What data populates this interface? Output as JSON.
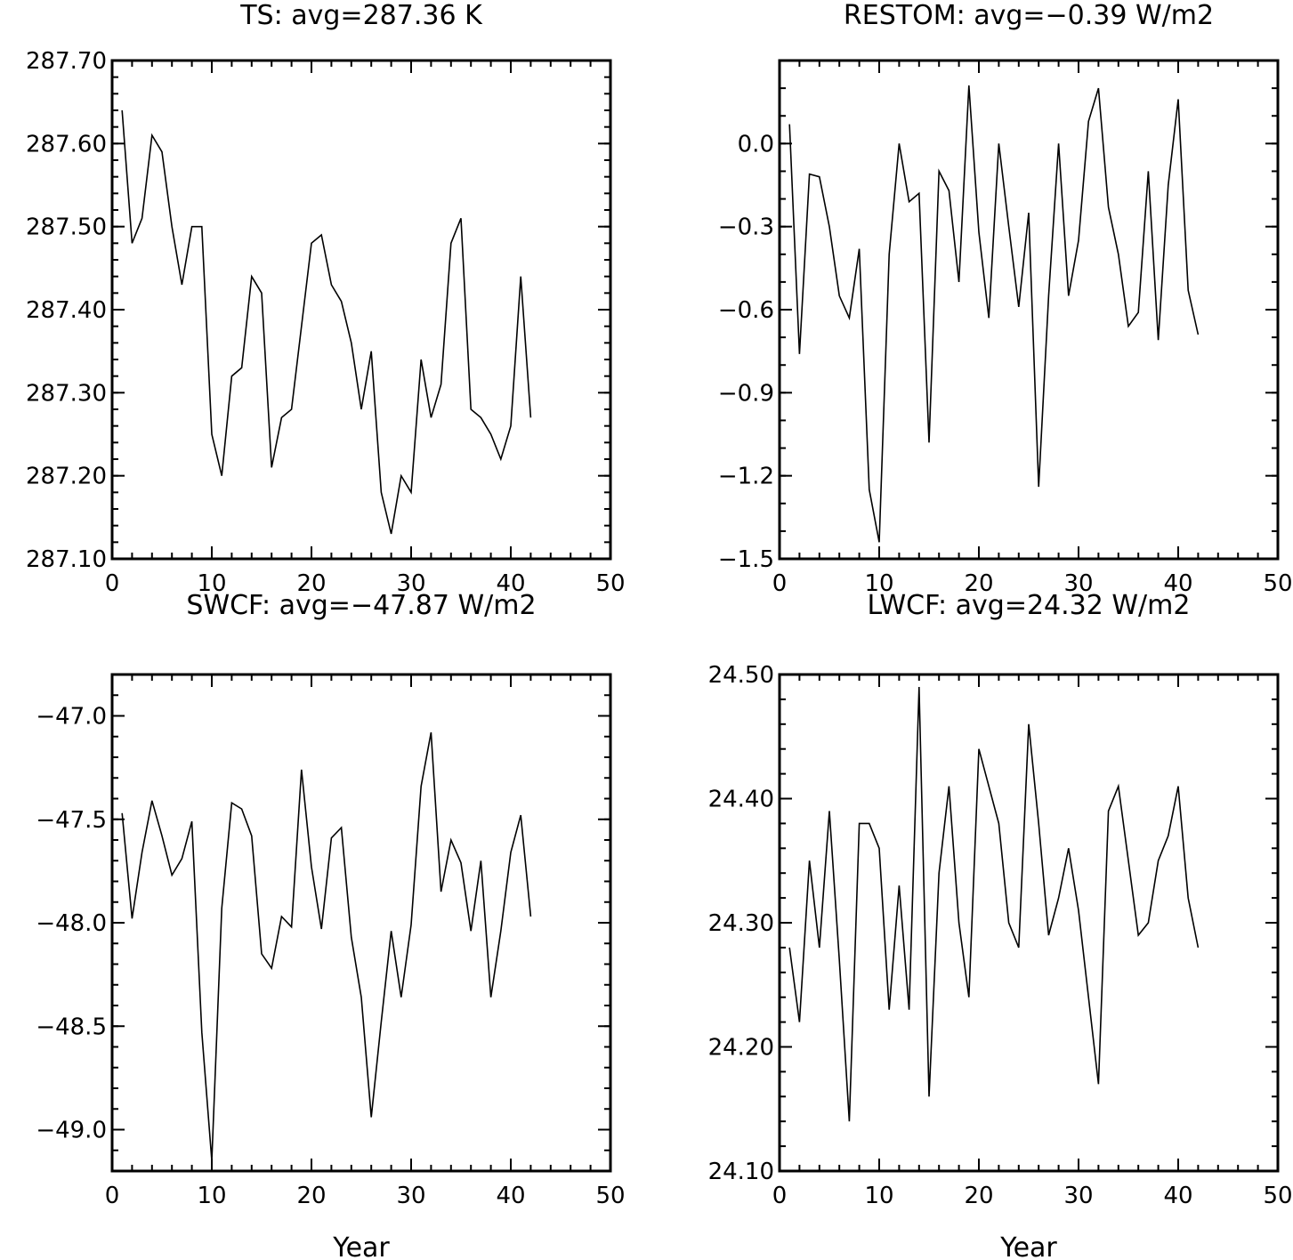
{
  "chart_data": [
    {
      "type": "line",
      "title": "TS: avg=287.36 K",
      "xlabel": "",
      "ylabel": "",
      "xlim": [
        0,
        50
      ],
      "ylim": [
        287.1,
        287.7
      ],
      "xticks": [
        0,
        10,
        20,
        30,
        40,
        50
      ],
      "xtick_labels": [
        "0",
        "10",
        "20",
        "30",
        "40",
        "50"
      ],
      "yticks": [
        287.1,
        287.2,
        287.3,
        287.4,
        287.5,
        287.6,
        287.7
      ],
      "ytick_labels": [
        "287.10",
        "287.20",
        "287.30",
        "287.40",
        "287.50",
        "287.60",
        "287.70"
      ],
      "yminor_step": 0.02,
      "grid": false,
      "x": [
        1,
        2,
        3,
        4,
        5,
        6,
        7,
        8,
        9,
        10,
        11,
        12,
        13,
        14,
        15,
        16,
        17,
        18,
        19,
        20,
        21,
        22,
        23,
        24,
        25,
        26,
        27,
        28,
        29,
        30,
        31,
        32,
        33,
        34,
        35,
        36,
        37,
        38,
        39,
        40,
        41,
        42
      ],
      "values": [
        287.64,
        287.48,
        287.51,
        287.61,
        287.59,
        287.5,
        287.43,
        287.5,
        287.5,
        287.25,
        287.2,
        287.32,
        287.33,
        287.44,
        287.42,
        287.21,
        287.27,
        287.28,
        287.38,
        287.48,
        287.49,
        287.43,
        287.41,
        287.36,
        287.28,
        287.35,
        287.18,
        287.13,
        287.2,
        287.18,
        287.34,
        287.27,
        287.31,
        287.48,
        287.51,
        287.28,
        287.27,
        287.25,
        287.22,
        287.26,
        287.44,
        287.27
      ]
    },
    {
      "type": "line",
      "title": "RESTOM: avg=−0.39 W/m2",
      "xlabel": "",
      "ylabel": "",
      "xlim": [
        0,
        50
      ],
      "ylim": [
        -1.5,
        0.3
      ],
      "xticks": [
        0,
        10,
        20,
        30,
        40,
        50
      ],
      "xtick_labels": [
        "0",
        "10",
        "20",
        "30",
        "40",
        "50"
      ],
      "yticks": [
        -1.5,
        -1.2,
        -0.9,
        -0.6,
        -0.3,
        0.0
      ],
      "ytick_labels": [
        "−1.5",
        "−1.2",
        "−0.9",
        "−0.6",
        "−0.3",
        "0.0"
      ],
      "yminor_step": 0.1,
      "grid": false,
      "x": [
        1,
        2,
        3,
        4,
        5,
        6,
        7,
        8,
        9,
        10,
        11,
        12,
        13,
        14,
        15,
        16,
        17,
        18,
        19,
        20,
        21,
        22,
        23,
        24,
        25,
        26,
        27,
        28,
        29,
        30,
        31,
        32,
        33,
        34,
        35,
        36,
        37,
        38,
        39,
        40,
        41,
        42
      ],
      "values": [
        0.07,
        -0.76,
        -0.11,
        -0.12,
        -0.3,
        -0.55,
        -0.63,
        -0.38,
        -1.25,
        -1.44,
        -0.4,
        0.0,
        -0.21,
        -0.18,
        -1.08,
        -0.1,
        -0.17,
        -0.5,
        0.21,
        -0.32,
        -0.63,
        0.0,
        -0.3,
        -0.59,
        -0.25,
        -1.24,
        -0.55,
        0.0,
        -0.55,
        -0.35,
        0.08,
        0.2,
        -0.23,
        -0.4,
        -0.66,
        -0.61,
        -0.1,
        -0.71,
        -0.15,
        0.16,
        -0.53,
        -0.69
      ]
    },
    {
      "type": "line",
      "title": "SWCF: avg=−47.87 W/m2",
      "xlabel": "Year",
      "ylabel": "",
      "xlim": [
        0,
        50
      ],
      "ylim": [
        -49.2,
        -46.8
      ],
      "xticks": [
        0,
        10,
        20,
        30,
        40,
        50
      ],
      "xtick_labels": [
        "0",
        "10",
        "20",
        "30",
        "40",
        "50"
      ],
      "yticks": [
        -49.0,
        -48.5,
        -48.0,
        -47.5,
        -47.0
      ],
      "ytick_labels": [
        "−49.0",
        "−48.5",
        "−48.0",
        "−47.5",
        "−47.0"
      ],
      "yminor_step": 0.1,
      "grid": false,
      "x": [
        1,
        2,
        3,
        4,
        5,
        6,
        7,
        8,
        9,
        10,
        11,
        12,
        13,
        14,
        15,
        16,
        17,
        18,
        19,
        20,
        21,
        22,
        23,
        24,
        25,
        26,
        27,
        28,
        29,
        30,
        31,
        32,
        33,
        34,
        35,
        36,
        37,
        38,
        39,
        40,
        41,
        42
      ],
      "values": [
        -47.47,
        -47.98,
        -47.66,
        -47.41,
        -47.58,
        -47.77,
        -47.69,
        -47.51,
        -48.53,
        -49.15,
        -47.93,
        -47.42,
        -47.45,
        -47.58,
        -48.15,
        -48.22,
        -47.97,
        -48.02,
        -47.26,
        -47.73,
        -48.03,
        -47.59,
        -47.54,
        -48.07,
        -48.36,
        -48.94,
        -48.48,
        -48.04,
        -48.36,
        -48.01,
        -47.34,
        -47.08,
        -47.85,
        -47.6,
        -47.71,
        -48.04,
        -47.7,
        -48.36,
        -48.04,
        -47.66,
        -47.48,
        -47.97
      ]
    },
    {
      "type": "line",
      "title": "LWCF: avg=24.32 W/m2",
      "xlabel": "Year",
      "ylabel": "",
      "xlim": [
        0,
        50
      ],
      "ylim": [
        24.1,
        24.5
      ],
      "xticks": [
        0,
        10,
        20,
        30,
        40,
        50
      ],
      "xtick_labels": [
        "0",
        "10",
        "20",
        "30",
        "40",
        "50"
      ],
      "yticks": [
        24.1,
        24.2,
        24.3,
        24.4,
        24.5
      ],
      "ytick_labels": [
        "24.10",
        "24.20",
        "24.30",
        "24.40",
        "24.50"
      ],
      "yminor_step": 0.02,
      "grid": false,
      "x": [
        1,
        2,
        3,
        4,
        5,
        6,
        7,
        8,
        9,
        10,
        11,
        12,
        13,
        14,
        15,
        16,
        17,
        18,
        19,
        20,
        21,
        22,
        23,
        24,
        25,
        26,
        27,
        28,
        29,
        30,
        31,
        32,
        33,
        34,
        35,
        36,
        37,
        38,
        39,
        40,
        41,
        42
      ],
      "values": [
        24.28,
        24.22,
        24.35,
        24.28,
        24.39,
        24.27,
        24.14,
        24.38,
        24.38,
        24.36,
        24.23,
        24.33,
        24.23,
        24.49,
        24.16,
        24.34,
        24.41,
        24.3,
        24.24,
        24.44,
        24.41,
        24.38,
        24.3,
        24.28,
        24.46,
        24.38,
        24.29,
        24.32,
        24.36,
        24.31,
        24.24,
        24.17,
        24.39,
        24.41,
        24.35,
        24.29,
        24.3,
        24.35,
        24.37,
        24.41,
        24.32,
        24.28
      ]
    }
  ]
}
